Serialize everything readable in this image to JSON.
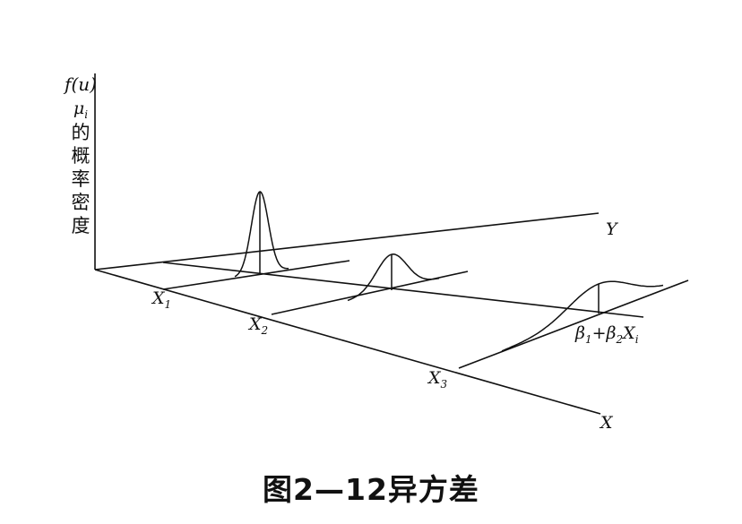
{
  "y_axis_title": {
    "function": "f(u)",
    "variable": "μ",
    "variable_sub": "i",
    "chars": [
      "的",
      "概",
      "率",
      "密",
      "度"
    ]
  },
  "axis_labels": {
    "y": "Y",
    "x": "X"
  },
  "points": [
    {
      "name": "X",
      "sub": "1"
    },
    {
      "name": "X",
      "sub": "2"
    },
    {
      "name": "X",
      "sub": "3"
    }
  ],
  "regression_label": {
    "b1": "β",
    "b1_sub": "1",
    "plus": "+",
    "b2": "β",
    "b2_sub": "2",
    "x": "X",
    "x_sub": "i"
  },
  "caption": "图2—12异方差"
}
